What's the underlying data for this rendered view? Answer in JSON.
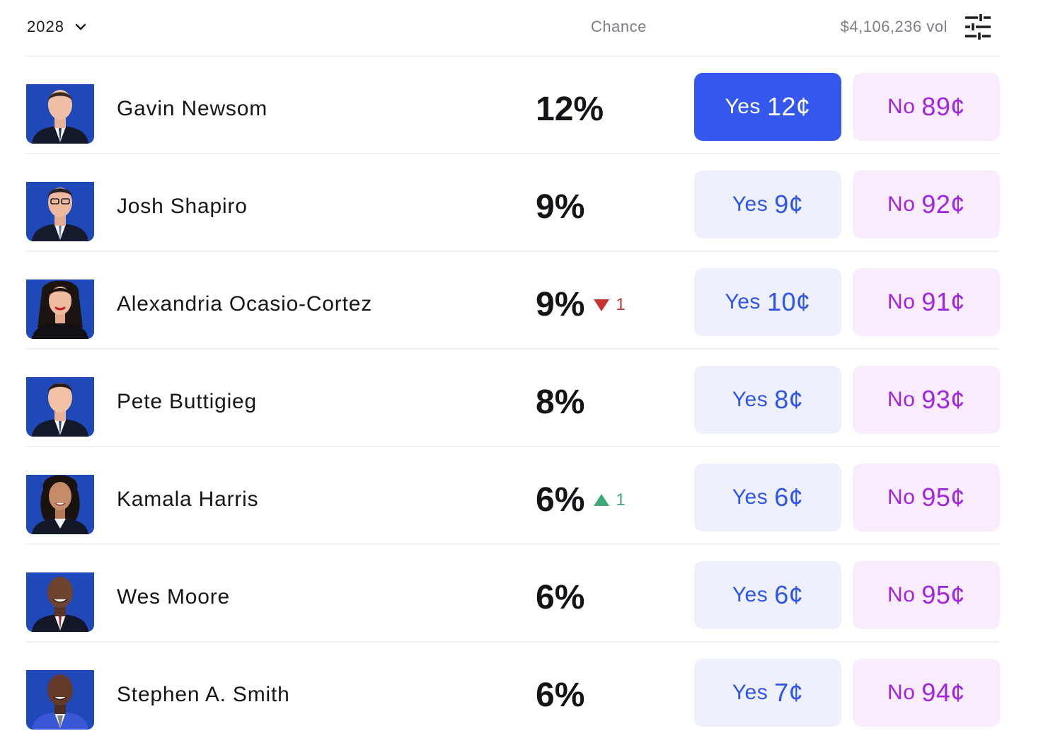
{
  "header": {
    "year": "2028",
    "chance_label": "Chance",
    "volume": "$4,106,236 vol"
  },
  "colors": {
    "yes_active_bg": "#3457ee",
    "yes_bg": "#eef1fd",
    "yes_text": "#2f55e8",
    "no_bg": "#f8ecfd",
    "no_text": "#a224df",
    "delta_down": "#c8322f",
    "delta_up": "#3ea876"
  },
  "candidates": [
    {
      "name": "Gavin Newsom",
      "chance": "12%",
      "yes_label": "Yes",
      "yes_price": "12¢",
      "no_label": "No",
      "no_price": "89¢"
    },
    {
      "name": "Josh Shapiro",
      "chance": "9%",
      "yes_label": "Yes",
      "yes_price": "9¢",
      "no_label": "No",
      "no_price": "92¢"
    },
    {
      "name": "Alexandria Ocasio-Cortez",
      "chance": "9%",
      "delta": "1",
      "delta_direction": "down",
      "yes_label": "Yes",
      "yes_price": "10¢",
      "no_label": "No",
      "no_price": "91¢"
    },
    {
      "name": "Pete Buttigieg",
      "chance": "8%",
      "yes_label": "Yes",
      "yes_price": "8¢",
      "no_label": "No",
      "no_price": "93¢"
    },
    {
      "name": "Kamala Harris",
      "chance": "6%",
      "delta": "1",
      "delta_direction": "up",
      "yes_label": "Yes",
      "yes_price": "6¢",
      "no_label": "No",
      "no_price": "95¢"
    },
    {
      "name": "Wes Moore",
      "chance": "6%",
      "yes_label": "Yes",
      "yes_price": "6¢",
      "no_label": "No",
      "no_price": "95¢"
    },
    {
      "name": "Stephen A. Smith",
      "chance": "6%",
      "yes_label": "Yes",
      "yes_price": "7¢",
      "no_label": "No",
      "no_price": "94¢"
    }
  ]
}
